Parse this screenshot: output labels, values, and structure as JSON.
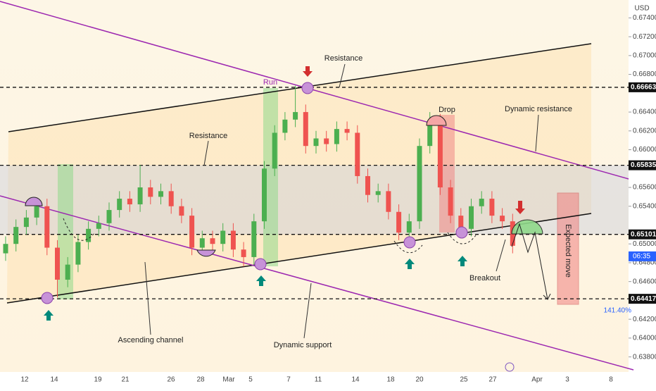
{
  "header": {
    "currency": "USD"
  },
  "chart_data": {
    "type": "candlestick",
    "open": [
      0.649,
      0.65,
      0.6518,
      0.6528,
      0.654,
      0.6496,
      0.6462,
      0.6478,
      0.6502,
      0.6516,
      0.6522,
      0.6536,
      0.6548,
      0.6542,
      0.656,
      0.655,
      0.6556,
      0.654,
      0.653,
      0.6496,
      0.6506,
      0.65,
      0.6514,
      0.6494,
      0.6486,
      0.6524,
      0.658,
      0.6618,
      0.6632,
      0.664,
      0.6604,
      0.6612,
      0.6606,
      0.6622,
      0.6618,
      0.6572,
      0.6552,
      0.6556,
      0.6534,
      0.6512,
      0.6524,
      0.6604,
      0.663,
      0.656,
      0.653,
      0.6516,
      0.654,
      0.6548,
      0.653,
      0.6524
    ],
    "high": [
      0.6508,
      0.6526,
      0.6536,
      0.6548,
      0.6548,
      0.6504,
      0.6486,
      0.651,
      0.6524,
      0.653,
      0.6544,
      0.6556,
      0.6556,
      0.6584,
      0.6568,
      0.6564,
      0.6564,
      0.6548,
      0.6538,
      0.6514,
      0.6514,
      0.6522,
      0.6522,
      0.6502,
      0.6532,
      0.6588,
      0.6626,
      0.664,
      0.6668,
      0.6648,
      0.662,
      0.662,
      0.663,
      0.663,
      0.6626,
      0.658,
      0.6564,
      0.6564,
      0.6542,
      0.6532,
      0.6612,
      0.664,
      0.6638,
      0.6568,
      0.6538,
      0.6548,
      0.6556,
      0.6556,
      0.6538,
      0.6532
    ],
    "low": [
      0.6482,
      0.6492,
      0.651,
      0.652,
      0.6488,
      0.6443,
      0.6454,
      0.647,
      0.6494,
      0.6508,
      0.6514,
      0.6528,
      0.6534,
      0.6534,
      0.6542,
      0.6542,
      0.6532,
      0.6522,
      0.6488,
      0.6488,
      0.6492,
      0.6492,
      0.6486,
      0.6476,
      0.6478,
      0.6516,
      0.6572,
      0.661,
      0.6624,
      0.6596,
      0.6596,
      0.6598,
      0.6598,
      0.661,
      0.6564,
      0.6544,
      0.6544,
      0.6526,
      0.6504,
      0.6504,
      0.6516,
      0.6596,
      0.6552,
      0.6522,
      0.6508,
      0.6508,
      0.6532,
      0.6522,
      0.6516,
      0.649
    ],
    "close": [
      0.65,
      0.6518,
      0.6528,
      0.654,
      0.6496,
      0.6462,
      0.6478,
      0.6502,
      0.6516,
      0.6522,
      0.6536,
      0.6548,
      0.6542,
      0.656,
      0.655,
      0.6556,
      0.654,
      0.653,
      0.6496,
      0.6506,
      0.65,
      0.6514,
      0.6494,
      0.6486,
      0.6524,
      0.658,
      0.6618,
      0.6632,
      0.664,
      0.6604,
      0.6612,
      0.6606,
      0.6622,
      0.6618,
      0.6572,
      0.6552,
      0.6556,
      0.6534,
      0.6512,
      0.6524,
      0.6604,
      0.663,
      0.656,
      0.653,
      0.6516,
      0.654,
      0.6548,
      0.653,
      0.6524,
      0.6498
    ],
    "up_color": "#4caf50",
    "down_color": "#ef5350",
    "ylim": [
      0.6364,
      0.6759
    ],
    "yticks": [
      {
        "value": 0.674,
        "label": "0.67400"
      },
      {
        "value": 0.672,
        "label": "0.67200"
      },
      {
        "value": 0.67,
        "label": "0.67000"
      },
      {
        "value": 0.668,
        "label": "0.66800"
      },
      {
        "value": 0.664,
        "label": "0.66400"
      },
      {
        "value": 0.662,
        "label": "0.66200"
      },
      {
        "value": 0.66,
        "label": "0.66000"
      },
      {
        "value": 0.656,
        "label": "0.65600"
      },
      {
        "value": 0.654,
        "label": "0.65400"
      },
      {
        "value": 0.65,
        "label": "0.65000"
      },
      {
        "value": 0.648,
        "label": "0.64800"
      },
      {
        "value": 0.646,
        "label": "0.64600"
      },
      {
        "value": 0.642,
        "label": "0.64200"
      },
      {
        "value": 0.64,
        "label": "0.64000"
      },
      {
        "value": 0.638,
        "label": "0.63800"
      }
    ],
    "levels": [
      {
        "value": 0.66663,
        "label": "0.66663"
      },
      {
        "value": 0.65835,
        "label": "0.65835"
      },
      {
        "value": 0.65101,
        "label": "0.65101"
      },
      {
        "value": 0.64417,
        "label": "0.64417"
      }
    ],
    "x_labels": [
      "12",
      "14",
      "19",
      "21",
      "26",
      "28",
      "Mar",
      "5",
      "7",
      "11",
      "14",
      "18",
      "20",
      "25",
      "27",
      "Apr",
      "3",
      "8"
    ],
    "countdown": "06:35",
    "fib_label": "141.40%",
    "annotations": {
      "run": "Run",
      "resistance_top": "Resistance",
      "resistance_mid": "Resistance",
      "drop": "Drop",
      "dynamic_resistance": "Dynamic resistance",
      "breakout": "Breakout",
      "ascending_channel": "Ascending channel",
      "dynamic_support": "Dynamic support",
      "expected_move": "Expected move"
    }
  }
}
